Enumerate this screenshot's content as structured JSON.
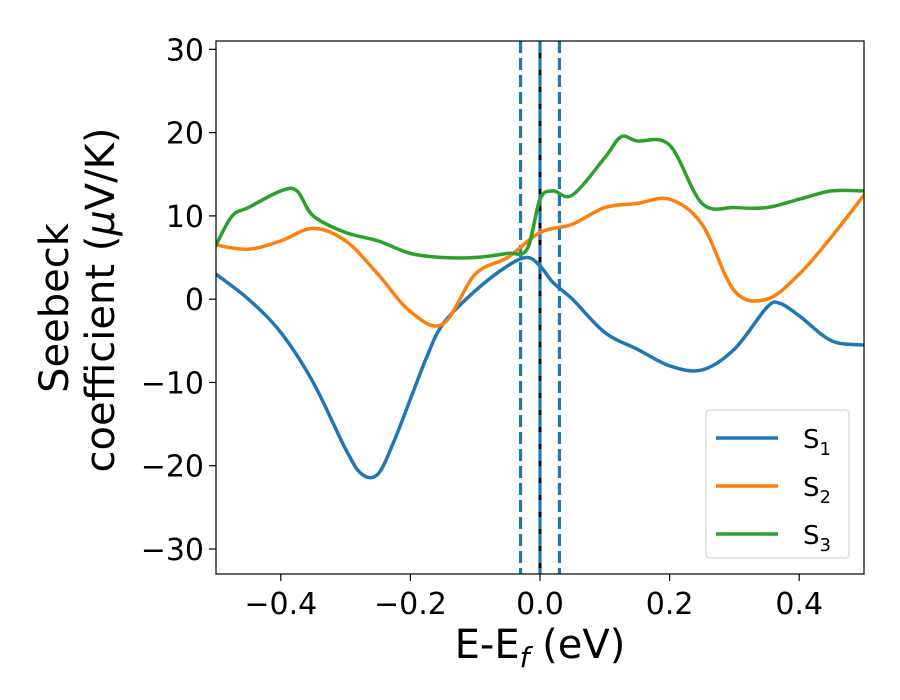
{
  "chart_data": {
    "type": "line",
    "title": "",
    "xlabel": {
      "main": "E-E",
      "sub": "f",
      "unit": " (eV)"
    },
    "ylabel": {
      "line1": "Seebeck",
      "line2": "coefficient  (",
      "mu": "μ",
      "unit": "V/K)"
    },
    "xlim": [
      -0.5,
      0.5
    ],
    "ylim": [
      -33,
      31
    ],
    "xticks": [
      -0.4,
      -0.2,
      0.0,
      0.2,
      0.4
    ],
    "xtick_labels": [
      "−0.4",
      "−0.2",
      "0.0",
      "0.2",
      "0.4"
    ],
    "yticks": [
      -30,
      -20,
      -10,
      0,
      10,
      20,
      30
    ],
    "ytick_labels": [
      "−30",
      "−20",
      "−10",
      "0",
      "10",
      "20",
      "30"
    ],
    "vlines": [
      {
        "x": -0.03,
        "style": "dashed",
        "color": "#1f77b4"
      },
      {
        "x": 0.0,
        "style": "solid",
        "color": "#000000"
      },
      {
        "x": 0.0,
        "style": "dashed",
        "color": "#1f77b4"
      },
      {
        "x": 0.03,
        "style": "dashed",
        "color": "#1f77b4"
      }
    ],
    "legend_position": "lower-right",
    "series": [
      {
        "name": "S1",
        "label": "S",
        "sub": "1",
        "color": "#1f77b4",
        "x": [
          -0.5,
          -0.45,
          -0.4,
          -0.35,
          -0.3,
          -0.275,
          -0.25,
          -0.225,
          -0.2,
          -0.175,
          -0.15,
          -0.1,
          -0.05,
          -0.02,
          0.0,
          0.02,
          0.05,
          0.1,
          0.15,
          0.2,
          0.25,
          0.3,
          0.35,
          0.37,
          0.4,
          0.45,
          0.5
        ],
        "y": [
          3,
          0,
          -4,
          -10,
          -18,
          -21,
          -21,
          -17,
          -12,
          -7,
          -3,
          1,
          4,
          5,
          4,
          2,
          0,
          -4,
          -6,
          -8,
          -8.5,
          -6,
          -1,
          -0.5,
          -2,
          -5,
          -5.5
        ]
      },
      {
        "name": "S2",
        "label": "S",
        "sub": "2",
        "color": "#ff7f0e",
        "x": [
          -0.5,
          -0.45,
          -0.4,
          -0.35,
          -0.3,
          -0.25,
          -0.2,
          -0.15,
          -0.1,
          -0.05,
          0.0,
          0.05,
          0.1,
          0.15,
          0.2,
          0.25,
          0.3,
          0.35,
          0.4,
          0.45,
          0.5
        ],
        "y": [
          6.5,
          6,
          7,
          8.5,
          7,
          3,
          -1.5,
          -3,
          3,
          5,
          8,
          9,
          11,
          11.5,
          12,
          9,
          1,
          0,
          3,
          7.5,
          12.5
        ]
      },
      {
        "name": "S3",
        "label": "S",
        "sub": "3",
        "color": "#2ca02c",
        "x": [
          -0.5,
          -0.475,
          -0.45,
          -0.4,
          -0.375,
          -0.35,
          -0.3,
          -0.25,
          -0.2,
          -0.15,
          -0.1,
          -0.05,
          -0.02,
          0.0,
          0.02,
          0.05,
          0.1,
          0.125,
          0.15,
          0.2,
          0.25,
          0.3,
          0.35,
          0.4,
          0.45,
          0.5
        ],
        "y": [
          6.5,
          10,
          11,
          13,
          13,
          10,
          8,
          7,
          5.5,
          5,
          5,
          5.5,
          6,
          12,
          13,
          12.5,
          17,
          19.5,
          19,
          18.5,
          11.5,
          11,
          11,
          12,
          13,
          13
        ]
      }
    ]
  }
}
